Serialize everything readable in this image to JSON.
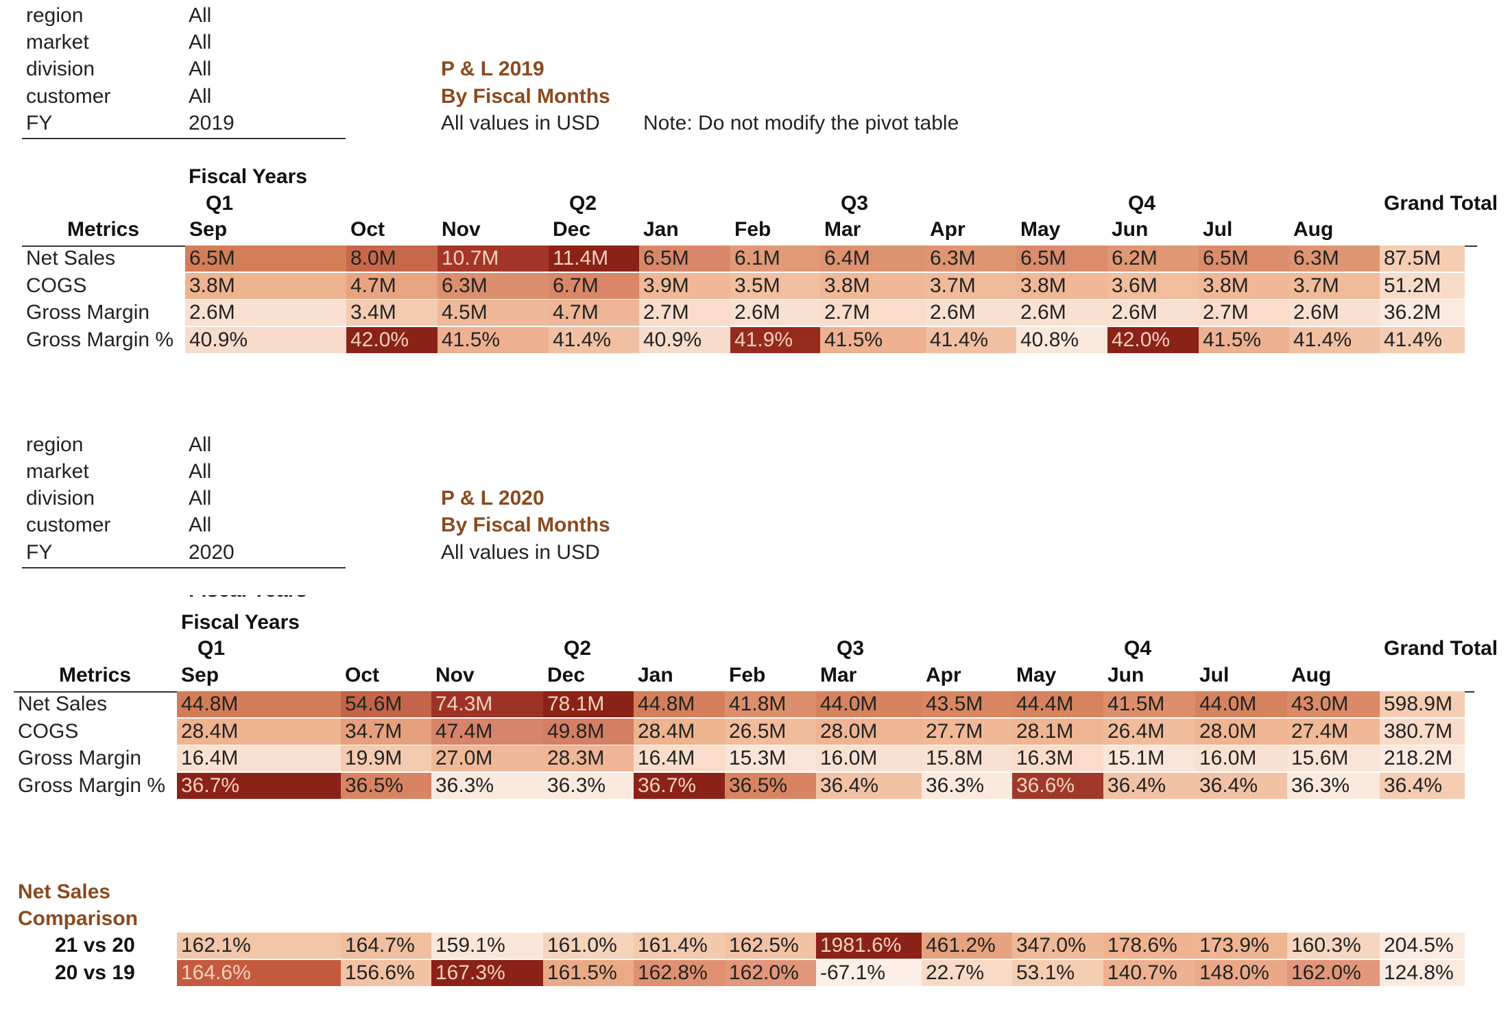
{
  "months": [
    "Sep",
    "Oct",
    "Nov",
    "Dec",
    "Jan",
    "Feb",
    "Mar",
    "Apr",
    "May",
    "Jun",
    "Jul",
    "Aug"
  ],
  "quarters": [
    "Q1",
    "Q2",
    "Q3",
    "Q4"
  ],
  "headers": {
    "fiscal_years": "Fiscal Years",
    "metrics": "Metrics",
    "grand_total": "Grand Total"
  },
  "pl2019": {
    "filters": [
      {
        "label": "region",
        "value": "All"
      },
      {
        "label": "market",
        "value": "All"
      },
      {
        "label": "division",
        "value": "All"
      },
      {
        "label": "customer",
        "value": "All"
      },
      {
        "label": "FY",
        "value": "2019"
      }
    ],
    "title": "P & L 2019",
    "subtitle": "By Fiscal Months",
    "units": "All values in USD",
    "note": "Note: Do not modify the pivot table",
    "rows": [
      {
        "label": "Net Sales",
        "values": [
          "6.5M",
          "8.0M",
          "10.7M",
          "11.4M",
          "6.5M",
          "6.1M",
          "6.4M",
          "6.3M",
          "6.5M",
          "6.2M",
          "6.5M",
          "6.3M"
        ],
        "total": "87.5M",
        "colors": [
          "#d47e58",
          "#c7684a",
          "#a33628",
          "#8b2217",
          "#d9876a",
          "#e19a78",
          "#dd9270",
          "#de9672",
          "#da8c6c",
          "#e09874",
          "#da8c6c",
          "#de9672"
        ]
      },
      {
        "label": "COGS",
        "values": [
          "3.8M",
          "4.7M",
          "6.3M",
          "6.7M",
          "3.9M",
          "3.5M",
          "3.8M",
          "3.7M",
          "3.8M",
          "3.6M",
          "3.8M",
          "3.7M"
        ],
        "total": "51.2M",
        "colors": [
          "#eeb38f",
          "#e8a481",
          "#dc8f6e",
          "#d98768",
          "#f0b897",
          "#f2c0a0",
          "#f0b897",
          "#f0bb9a",
          "#f0b897",
          "#f1bd9c",
          "#f0b897",
          "#f0bb9a"
        ]
      },
      {
        "label": "Gross Margin",
        "values": [
          "2.6M",
          "3.4M",
          "4.5M",
          "4.7M",
          "2.7M",
          "2.6M",
          "2.7M",
          "2.6M",
          "2.6M",
          "2.6M",
          "2.7M",
          "2.6M"
        ],
        "total": "36.2M",
        "colors": [
          "#f9e1d1",
          "#f3cbb0",
          "#efb999",
          "#eeb596",
          "#f9ddca",
          "#f9e1d1",
          "#f9ddca",
          "#f9e1d1",
          "#f9e1d1",
          "#f9e1d1",
          "#f9ddca",
          "#f9e1d1"
        ]
      },
      {
        "label": "Gross Margin %",
        "values": [
          "40.9%",
          "42.0%",
          "41.5%",
          "41.4%",
          "40.9%",
          "41.9%",
          "41.5%",
          "41.4%",
          "40.8%",
          "42.0%",
          "41.5%",
          "41.4%"
        ],
        "total": "41.4%",
        "colors": [
          "#f7dccb",
          "#8b2217",
          "#eeb090",
          "#f1c0a3",
          "#f7dccb",
          "#962a1d",
          "#eeb090",
          "#f1c0a3",
          "#fae8dc",
          "#8b2217",
          "#eeb090",
          "#f1c0a3"
        ]
      }
    ],
    "total_colors": [
      "#f4cdb2",
      "#f8dcc9",
      "#fbeadf",
      "#f4cdb2"
    ]
  },
  "pl2020": {
    "filters": [
      {
        "label": "region",
        "value": "All"
      },
      {
        "label": "market",
        "value": "All"
      },
      {
        "label": "division",
        "value": "All"
      },
      {
        "label": "customer",
        "value": "All"
      },
      {
        "label": "FY",
        "value": "2020"
      }
    ],
    "title": "P & L 2020",
    "subtitle": "By Fiscal Months",
    "units": "All values in USD",
    "rows": [
      {
        "label": "Net Sales",
        "values": [
          "44.8M",
          "54.6M",
          "74.3M",
          "78.1M",
          "44.8M",
          "41.8M",
          "44.0M",
          "43.5M",
          "44.4M",
          "41.5M",
          "44.0M",
          "43.0M"
        ],
        "total": "598.9M",
        "colors": [
          "#d27d58",
          "#c3654a",
          "#9c3326",
          "#8b2217",
          "#d47f5b",
          "#dc8f6c",
          "#d5835e",
          "#d88762",
          "#d6835f",
          "#dc8f6c",
          "#d5835e",
          "#da8a66"
        ]
      },
      {
        "label": "COGS",
        "values": [
          "28.4M",
          "34.7M",
          "47.4M",
          "49.8M",
          "28.4M",
          "26.5M",
          "28.0M",
          "27.7M",
          "28.1M",
          "26.4M",
          "28.0M",
          "27.4M"
        ],
        "total": "380.7M",
        "colors": [
          "#eeb38f",
          "#e6a07e",
          "#d8846a",
          "#d47e64",
          "#eeb38f",
          "#f1bc9b",
          "#efb592",
          "#f0b896",
          "#efb592",
          "#f1bc9b",
          "#efb592",
          "#f0b896"
        ]
      },
      {
        "label": "Gross Margin",
        "values": [
          "16.4M",
          "19.9M",
          "27.0M",
          "28.3M",
          "16.4M",
          "15.3M",
          "16.0M",
          "15.8M",
          "16.3M",
          "15.1M",
          "16.0M",
          "15.6M"
        ],
        "total": "218.2M",
        "colors": [
          "#f9e1d1",
          "#f3cbb0",
          "#efb999",
          "#eeb596",
          "#f9ddca",
          "#fae6d8",
          "#f9e1d1",
          "#f9e1d1",
          "#f9ddca",
          "#fae6d8",
          "#f9e1d1",
          "#fae4d5"
        ]
      },
      {
        "label": "Gross Margin %",
        "values": [
          "36.7%",
          "36.5%",
          "36.3%",
          "36.3%",
          "36.7%",
          "36.5%",
          "36.4%",
          "36.3%",
          "36.6%",
          "36.4%",
          "36.4%",
          "36.3%"
        ],
        "total": "36.4%",
        "colors": [
          "#8b2217",
          "#d88463",
          "#fbe9dd",
          "#fbe9dd",
          "#8b2217",
          "#d88463",
          "#f2c2a5",
          "#fbe9dd",
          "#a0392a",
          "#f2c2a5",
          "#f2c2a5",
          "#fbe9dd"
        ]
      }
    ],
    "total_colors": [
      "#f4cdb2",
      "#f8dcc9",
      "#fbeadf",
      "#f4cdb2"
    ]
  },
  "comparison": {
    "title_line1": "Net Sales",
    "title_line2": "Comparison",
    "rows": [
      {
        "label": "21 vs 20",
        "values": [
          "162.1%",
          "164.7%",
          "159.1%",
          "161.0%",
          "161.4%",
          "162.5%",
          "1981.6%",
          "461.2%",
          "347.0%",
          "178.6%",
          "173.9%",
          "160.3%"
        ],
        "total": "204.5%",
        "colors": [
          "#f2c6a9",
          "#f0bf9f",
          "#fae6d8",
          "#f6d3bb",
          "#f3caad",
          "#f1c2a3",
          "#8b2217",
          "#e7a27f",
          "#efb896",
          "#efb391",
          "#efb492",
          "#f6d6c0"
        ],
        "total_color": "#fbeadf"
      },
      {
        "label": "20 vs 19",
        "values": [
          "164.6%",
          "156.6%",
          "167.3%",
          "161.5%",
          "162.8%",
          "162.0%",
          "-67.1%",
          "22.7%",
          "53.1%",
          "140.7%",
          "148.0%",
          "162.0%"
        ],
        "total": "124.8%",
        "colors": [
          "#c45a3e",
          "#f2c2a3",
          "#8b2217",
          "#ebaa86",
          "#df9070",
          "#e2967a",
          "#fcefe6",
          "#f8dac6",
          "#f4cdb2",
          "#edb090",
          "#eba888",
          "#e2967a"
        ],
        "total_color": "#fbeadf"
      }
    ]
  }
}
